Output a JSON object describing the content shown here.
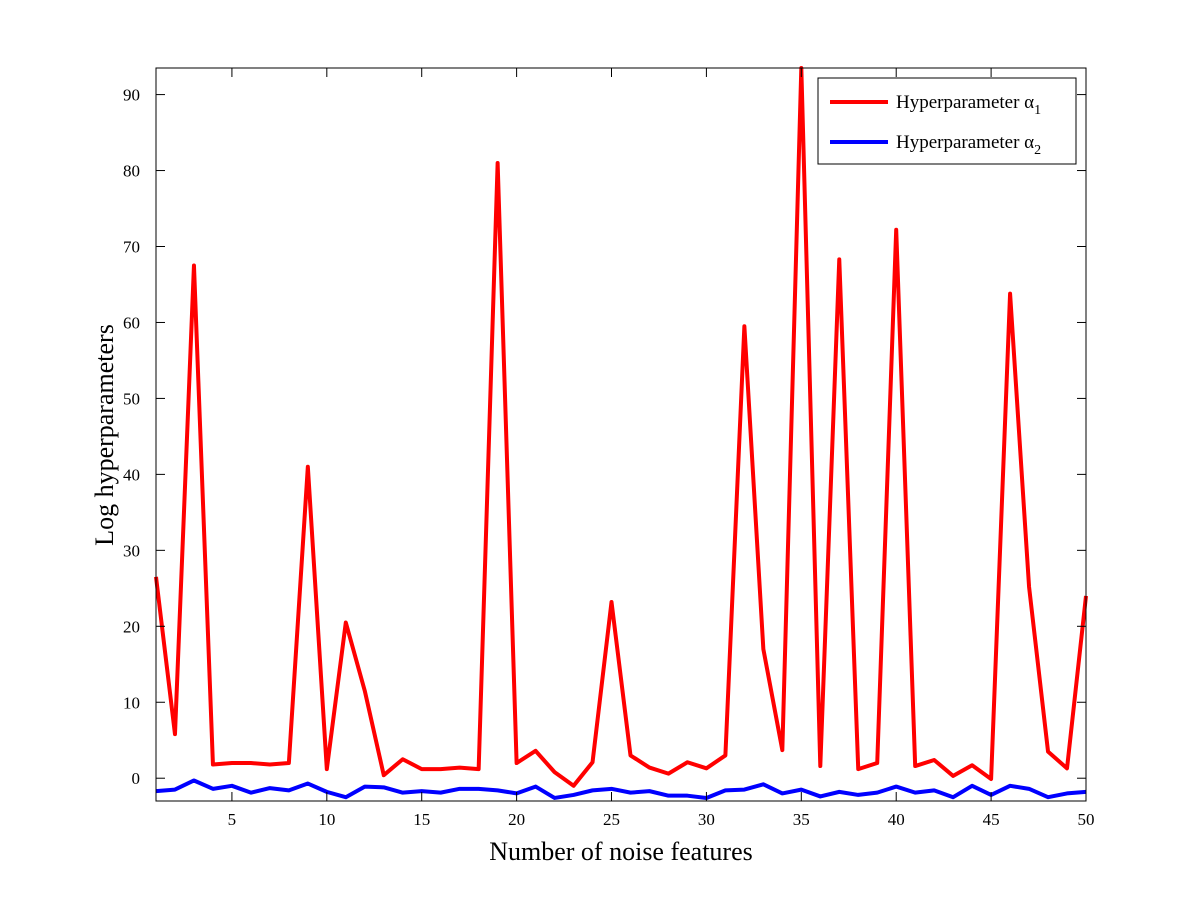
{
  "chart_data": {
    "type": "line",
    "title": "",
    "xlabel": "Number of noise features",
    "ylabel": "Log hyperparameters",
    "xlim": [
      1,
      50
    ],
    "ylim": [
      -3,
      93.5
    ],
    "xticks": [
      5,
      10,
      15,
      20,
      25,
      30,
      35,
      40,
      45,
      50
    ],
    "yticks": [
      0,
      10,
      20,
      30,
      40,
      50,
      60,
      70,
      80,
      90
    ],
    "grid": false,
    "legend_position": "top-right",
    "x": [
      1,
      2,
      3,
      4,
      5,
      6,
      7,
      8,
      9,
      10,
      11,
      12,
      13,
      14,
      15,
      16,
      17,
      18,
      19,
      20,
      21,
      22,
      23,
      24,
      25,
      26,
      27,
      28,
      29,
      30,
      31,
      32,
      33,
      34,
      35,
      36,
      37,
      38,
      39,
      40,
      41,
      42,
      43,
      44,
      45,
      46,
      47,
      48,
      49,
      50
    ],
    "series": [
      {
        "name": "Hyperparameter α",
        "subscript": "1",
        "color": "#ff0000",
        "values": [
          26.5,
          5.8,
          67.5,
          1.8,
          2.0,
          2.0,
          1.8,
          2.0,
          41.0,
          1.2,
          20.5,
          11.5,
          0.4,
          2.5,
          1.2,
          1.2,
          1.4,
          1.2,
          81.0,
          2.0,
          3.6,
          0.8,
          -1.0,
          2.1,
          23.2,
          3.0,
          1.4,
          0.6,
          2.1,
          1.3,
          3.0,
          59.5,
          17.0,
          3.7,
          93.5,
          1.6,
          68.3,
          1.2,
          2.0,
          72.2,
          1.6,
          2.4,
          0.3,
          1.7,
          -0.1,
          63.8,
          25.2,
          3.5,
          1.3,
          24.0
        ]
      },
      {
        "name": "Hyperparameter α",
        "subscript": "2",
        "color": "#0000ff",
        "values": [
          -1.7,
          -1.5,
          -0.3,
          -1.4,
          -1.0,
          -1.9,
          -1.3,
          -1.6,
          -0.7,
          -1.8,
          -2.5,
          -1.1,
          -1.2,
          -1.9,
          -1.7,
          -1.9,
          -1.4,
          -1.4,
          -1.6,
          -2.0,
          -1.1,
          -2.6,
          -2.2,
          -1.6,
          -1.4,
          -1.9,
          -1.7,
          -2.3,
          -2.3,
          -2.6,
          -1.6,
          -1.5,
          -0.8,
          -2.0,
          -1.5,
          -2.4,
          -1.8,
          -2.2,
          -1.9,
          -1.1,
          -1.9,
          -1.6,
          -2.5,
          -1.0,
          -2.2,
          -1.0,
          -1.4,
          -2.5,
          -2.0,
          -1.8
        ]
      }
    ]
  }
}
